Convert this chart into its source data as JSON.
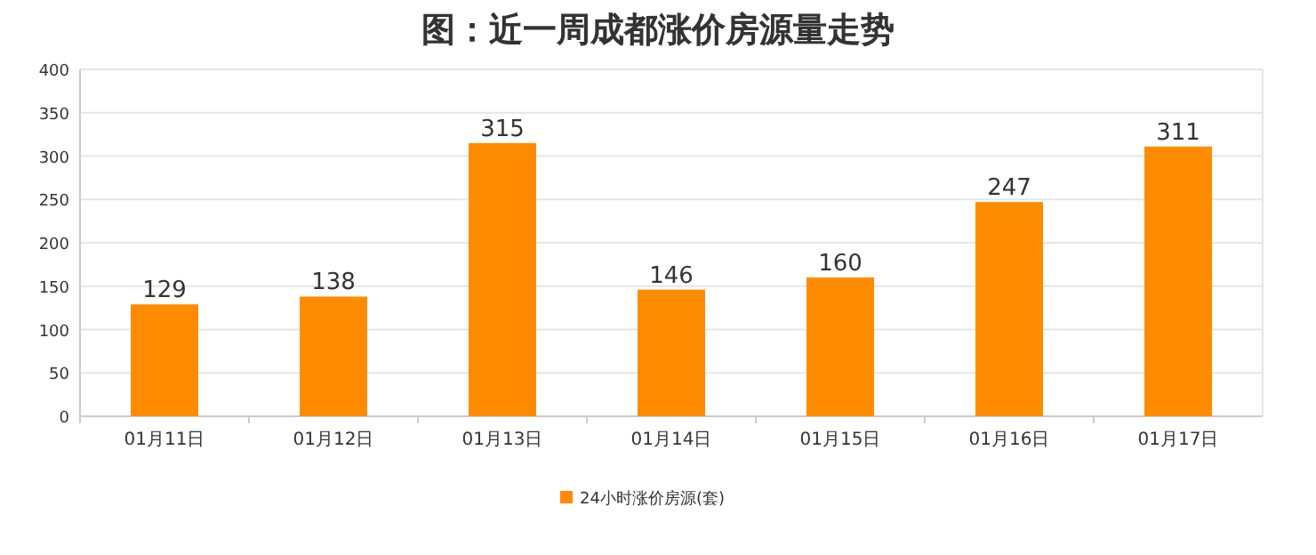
{
  "chart_data": {
    "type": "bar",
    "title": "图：近一周成都涨价房源量走势",
    "categories": [
      "01月11日",
      "01月12日",
      "01月13日",
      "01月14日",
      "01月15日",
      "01月16日",
      "01月17日"
    ],
    "series": [
      {
        "name": "24小时涨价房源(套)",
        "color": "#ff8c00",
        "values": [
          129,
          138,
          315,
          146,
          160,
          247,
          311
        ]
      }
    ],
    "ylim": [
      0,
      400
    ],
    "yticks": [
      0,
      50,
      100,
      150,
      200,
      250,
      300,
      350,
      400
    ],
    "grid": "y",
    "legend": "bottom",
    "data_labels": true
  }
}
